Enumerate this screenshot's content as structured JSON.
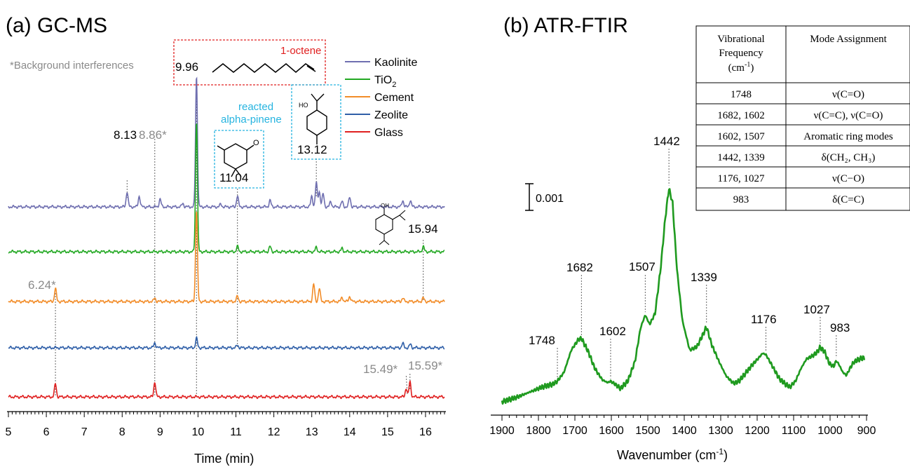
{
  "chart_data": [
    {
      "type": "line",
      "panel": "(a) GC-MS",
      "xlabel": "Time (min)",
      "xlim": [
        5,
        16.5
      ],
      "x_ticks": [
        "5",
        "6",
        "7",
        "8",
        "9",
        "10",
        "11",
        "12",
        "13",
        "14",
        "15",
        "16"
      ],
      "note": "*Background interferences",
      "series": [
        {
          "name": "Kaolinite",
          "color": "#6f6fb0",
          "peaks": [
            [
              8.13,
              0.35
            ],
            [
              8.45,
              0.25
            ],
            [
              9.0,
              0.18
            ],
            [
              9.6,
              0.08
            ],
            [
              9.96,
              3.0
            ],
            [
              10.6,
              0.06
            ],
            [
              11.04,
              0.25
            ],
            [
              11.9,
              0.15
            ],
            [
              13.0,
              0.25
            ],
            [
              13.12,
              0.55
            ],
            [
              13.2,
              0.35
            ],
            [
              13.3,
              0.3
            ],
            [
              13.5,
              0.12
            ],
            [
              13.8,
              0.12
            ],
            [
              14.0,
              0.22
            ],
            [
              15.4,
              0.15
            ],
            [
              15.6,
              0.15
            ]
          ]
        },
        {
          "name": "TiO2",
          "color": "#22a822",
          "peaks": [
            [
              9.96,
              3.0
            ],
            [
              11.04,
              0.12
            ],
            [
              11.9,
              0.12
            ],
            [
              13.12,
              0.1
            ],
            [
              13.8,
              0.08
            ],
            [
              15.94,
              0.12
            ]
          ]
        },
        {
          "name": "Cement",
          "color": "#f28c28",
          "peaks": [
            [
              6.24,
              0.3
            ],
            [
              8.86,
              0.08
            ],
            [
              9.96,
              2.1
            ],
            [
              11.04,
              0.12
            ],
            [
              13.05,
              0.4
            ],
            [
              13.2,
              0.3
            ],
            [
              13.8,
              0.1
            ],
            [
              14.0,
              0.12
            ],
            [
              15.4,
              0.08
            ],
            [
              15.94,
              0.08
            ]
          ]
        },
        {
          "name": "Zeolite",
          "color": "#2f5fa8",
          "peaks": [
            [
              8.86,
              0.12
            ],
            [
              9.96,
              0.22
            ],
            [
              11.04,
              0.06
            ],
            [
              15.4,
              0.1
            ],
            [
              15.6,
              0.08
            ]
          ]
        },
        {
          "name": "Glass",
          "color": "#e02020",
          "peaks": [
            [
              6.24,
              0.3
            ],
            [
              8.86,
              0.35
            ],
            [
              15.49,
              0.2
            ],
            [
              15.59,
              0.35
            ]
          ]
        }
      ],
      "peak_labels": [
        {
          "x": 9.96,
          "text": "9.96",
          "color": "black"
        },
        {
          "x": 8.13,
          "text": "8.13",
          "color": "black"
        },
        {
          "x": 8.86,
          "text": "8.86*",
          "color": "gray"
        },
        {
          "x": 11.04,
          "text": "11.04",
          "color": "black"
        },
        {
          "x": 13.12,
          "text": "13.12",
          "color": "black"
        },
        {
          "x": 15.94,
          "text": "15.94",
          "color": "black"
        },
        {
          "x": 6.24,
          "text": "6.24*",
          "color": "gray"
        },
        {
          "x": 15.49,
          "text": "15.49*",
          "color": "gray"
        },
        {
          "x": 15.59,
          "text": "15.59*",
          "color": "gray"
        }
      ],
      "annotations": [
        "1-octene",
        "reacted alpha-pinene"
      ]
    },
    {
      "type": "line",
      "panel": "(b) ATR-FTIR",
      "xlabel": "Wavenumber (cm⁻¹)",
      "xlim": [
        1900,
        900
      ],
      "x_reversed": true,
      "x_ticks": [
        "1900",
        "1800",
        "1700",
        "1600",
        "1500",
        "1400",
        "1300",
        "1200",
        "1100",
        "1000",
        "900"
      ],
      "scale_bar": "0.001",
      "series": [
        {
          "name": "",
          "color": "#1f9a1f",
          "x": [
            1900,
            1860,
            1820,
            1790,
            1760,
            1748,
            1730,
            1710,
            1690,
            1682,
            1665,
            1645,
            1625,
            1610,
            1602,
            1590,
            1575,
            1555,
            1535,
            1520,
            1507,
            1495,
            1480,
            1465,
            1452,
            1442,
            1432,
            1420,
            1405,
            1385,
            1365,
            1350,
            1339,
            1325,
            1305,
            1285,
            1265,
            1250,
            1230,
            1210,
            1195,
            1185,
            1176,
            1160,
            1140,
            1125,
            1110,
            1095,
            1080,
            1065,
            1050,
            1038,
            1027,
            1015,
            1002,
            990,
            983,
            975,
            965,
            955,
            945,
            935,
            920,
            905
          ],
          "y": [
            0.0,
            0.06,
            0.14,
            0.2,
            0.24,
            0.28,
            0.4,
            0.7,
            0.85,
            0.86,
            0.7,
            0.45,
            0.3,
            0.26,
            0.28,
            0.24,
            0.18,
            0.28,
            0.55,
            1.0,
            1.18,
            1.05,
            1.2,
            1.8,
            2.5,
            2.9,
            2.7,
            1.8,
            1.1,
            0.7,
            0.75,
            0.9,
            1.02,
            0.78,
            0.55,
            0.35,
            0.25,
            0.28,
            0.4,
            0.52,
            0.6,
            0.66,
            0.64,
            0.5,
            0.32,
            0.25,
            0.2,
            0.28,
            0.45,
            0.58,
            0.62,
            0.66,
            0.74,
            0.68,
            0.52,
            0.48,
            0.56,
            0.5,
            0.4,
            0.36,
            0.46,
            0.54,
            0.58,
            0.6
          ]
        }
      ],
      "peak_labels": [
        "1748",
        "1682",
        "1602",
        "1507",
        "1442",
        "1339",
        "1176",
        "1027",
        "983"
      ],
      "table": {
        "headers": [
          "Vibrational Frequency (cm⁻¹)",
          "Mode Assignment"
        ],
        "rows": [
          [
            "1748",
            "ν(C=O)"
          ],
          [
            "1682, 1602",
            "ν(C=C), ν(C=O)"
          ],
          [
            "1602, 1507",
            "Aromatic ring modes"
          ],
          [
            "1442, 1339",
            "δ(CH₂, CH₃)"
          ],
          [
            "1176, 1027",
            "ν(C−O)"
          ],
          [
            "983",
            "δ(C=C)"
          ]
        ]
      }
    }
  ],
  "text": {
    "title_a": "(a) GC-MS",
    "title_b": "(b) ATR-FTIR",
    "bg_note": "*Background interferences",
    "octene": "1-octene",
    "reacted_1": "reacted",
    "reacted_2": "alpha-pinene",
    "xlabel_a": "Time (min)",
    "xlabel_b_main": "Wavenumber (cm",
    "xlabel_b_sup": "-1",
    "xlabel_b_end": ")",
    "scale": "0.001",
    "tbl_h1_l1": "Vibrational",
    "tbl_h1_l2": "Frequency",
    "tbl_h1_l3a": "(cm",
    "tbl_h1_l3sup": "-1",
    "tbl_h1_l3b": ")",
    "tbl_h2": "Mode Assignment",
    "legend": [
      "Kaolinite",
      "TiO",
      "Cement",
      "Zeolite",
      "Glass"
    ],
    "legend_tio2_sub": "2"
  }
}
